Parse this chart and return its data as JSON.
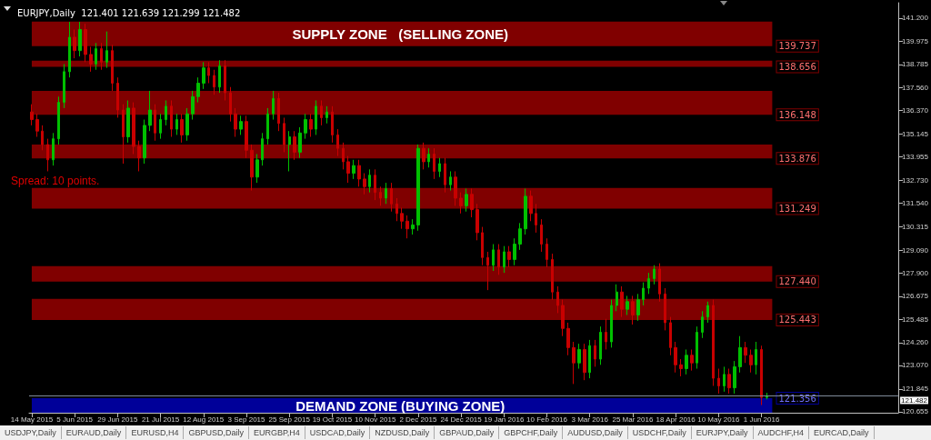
{
  "chart_data": {
    "type": "candlestick",
    "title": "EURJPY,Daily  121.401 121.639 121.299 121.482",
    "annotations": [
      "Spread: 10 points.",
      "SUPPLY ZONE   (SELLING ZONE)",
      "DEMAND ZONE (BUYING ZONE)",
      "USDJPY,Daily",
      "EURAUD,Daily",
      "EURUSD,H4",
      "GBPUSD,Daily",
      "EURGBP,H4",
      "USDCAD,Daily",
      "NZDUSD,Daily",
      "GBPAUD,Daily",
      "GBPCHF,Daily",
      "AUDUSD,Daily",
      "USDCHF,Daily",
      "EURJPY,Daily",
      "AUDCHF,H4",
      "EURCAD,Daily"
    ],
    "categories": [
      "14 May 2015",
      null,
      null,
      null,
      null,
      null,
      null,
      null,
      "5 Jun 2015",
      null,
      null,
      null,
      null,
      null,
      null,
      null,
      "29 Jun 2015",
      null,
      null,
      null,
      null,
      null,
      null,
      null,
      "21 Jul 2015",
      null,
      null,
      null,
      null,
      null,
      null,
      null,
      "12 Aug 2015",
      null,
      null,
      null,
      null,
      null,
      null,
      null,
      "3 Sep 2015",
      null,
      null,
      null,
      null,
      null,
      null,
      null,
      "25 Sep 2015",
      null,
      null,
      null,
      null,
      null,
      null,
      null,
      "19 Oct 2015",
      null,
      null,
      null,
      null,
      null,
      null,
      null,
      "10 Nov 2015",
      null,
      null,
      null,
      null,
      null,
      null,
      null,
      "2 Dec 2015",
      null,
      null,
      null,
      null,
      null,
      null,
      null,
      "24 Dec 2015",
      null,
      null,
      null,
      null,
      null,
      null,
      null,
      "19 Jan 2016",
      null,
      null,
      null,
      null,
      null,
      null,
      null,
      "10 Feb 2016",
      null,
      null,
      null,
      null,
      null,
      null,
      null,
      "3 Mar 2016",
      null,
      null,
      null,
      null,
      null,
      null,
      null,
      "25 Mar 2016",
      null,
      null,
      null,
      null,
      null,
      null,
      null,
      "18 Apr 2016",
      null,
      null,
      null,
      null,
      null,
      null,
      null,
      "10 May 2016",
      null,
      null,
      null,
      null,
      null,
      null,
      null,
      "1 Jun 2016",
      null,
      null,
      null,
      null,
      null,
      null,
      null,
      null,
      null,
      null,
      null,
      null,
      null,
      null,
      null,
      null,
      null,
      null,
      null,
      null,
      null,
      null,
      null,
      null,
      null
    ],
    "ohlc": [
      [
        136.3,
        136.7,
        135.6,
        135.9
      ],
      [
        135.9,
        136.2,
        135.0,
        135.3
      ],
      [
        135.3,
        135.6,
        134.3,
        134.6
      ],
      [
        134.6,
        134.9,
        133.2,
        133.8
      ],
      [
        133.8,
        135.2,
        133.5,
        134.9
      ],
      [
        134.9,
        137.1,
        134.6,
        136.8
      ],
      [
        136.8,
        138.8,
        136.5,
        138.4
      ],
      [
        138.4,
        141.0,
        138.1,
        140.2
      ],
      [
        140.2,
        140.6,
        139.1,
        139.5
      ],
      [
        139.5,
        141.0,
        139.2,
        140.6
      ],
      [
        140.6,
        140.9,
        138.9,
        139.3
      ],
      [
        139.3,
        139.7,
        138.4,
        138.8
      ],
      [
        138.8,
        139.9,
        138.5,
        139.6
      ],
      [
        139.6,
        139.9,
        138.5,
        138.9
      ],
      [
        138.9,
        140.5,
        138.6,
        139.5
      ],
      [
        139.5,
        139.8,
        137.4,
        137.8
      ],
      [
        137.8,
        138.1,
        136.0,
        136.4
      ],
      [
        136.4,
        136.7,
        133.6,
        135.0
      ],
      [
        135.0,
        136.9,
        134.7,
        136.5
      ],
      [
        136.5,
        136.8,
        134.1,
        134.5
      ],
      [
        134.5,
        134.8,
        133.2,
        133.9
      ],
      [
        133.9,
        135.9,
        133.6,
        135.6
      ],
      [
        135.6,
        137.4,
        135.3,
        136.4
      ],
      [
        136.4,
        136.7,
        134.8,
        135.2
      ],
      [
        135.2,
        136.2,
        134.9,
        135.9
      ],
      [
        135.9,
        136.9,
        135.6,
        136.6
      ],
      [
        136.6,
        136.9,
        135.0,
        135.4
      ],
      [
        135.4,
        136.2,
        135.1,
        135.9
      ],
      [
        135.9,
        136.2,
        134.7,
        135.1
      ],
      [
        135.1,
        136.5,
        134.8,
        136.2
      ],
      [
        136.2,
        137.4,
        135.9,
        137.1
      ],
      [
        137.1,
        138.1,
        136.8,
        137.8
      ],
      [
        137.8,
        138.9,
        137.5,
        138.6
      ],
      [
        138.6,
        138.9,
        137.8,
        138.2
      ],
      [
        138.2,
        138.5,
        137.2,
        137.6
      ],
      [
        137.6,
        139.0,
        137.3,
        138.7
      ],
      [
        138.7,
        139.0,
        136.9,
        137.3
      ],
      [
        137.3,
        137.6,
        135.8,
        136.2
      ],
      [
        136.2,
        136.5,
        135.0,
        135.4
      ],
      [
        135.4,
        136.1,
        135.1,
        135.8
      ],
      [
        135.8,
        136.1,
        133.9,
        134.3
      ],
      [
        134.3,
        134.6,
        132.2,
        132.9
      ],
      [
        132.9,
        134.1,
        132.6,
        133.8
      ],
      [
        133.8,
        135.2,
        133.5,
        134.9
      ],
      [
        134.9,
        136.5,
        134.6,
        136.2
      ],
      [
        136.2,
        137.4,
        135.9,
        137.0
      ],
      [
        137.0,
        137.3,
        135.3,
        135.7
      ],
      [
        135.7,
        136.0,
        134.2,
        134.6
      ],
      [
        134.6,
        135.3,
        133.2,
        135.0
      ],
      [
        135.0,
        135.3,
        133.8,
        134.2
      ],
      [
        134.2,
        135.5,
        133.9,
        135.2
      ],
      [
        135.2,
        136.2,
        134.9,
        135.9
      ],
      [
        135.9,
        136.2,
        135.0,
        135.4
      ],
      [
        135.4,
        136.9,
        135.1,
        136.6
      ],
      [
        136.6,
        136.9,
        135.6,
        136.0
      ],
      [
        136.0,
        136.6,
        135.7,
        136.3
      ],
      [
        136.3,
        136.6,
        134.7,
        135.1
      ],
      [
        135.1,
        135.4,
        134.0,
        134.4
      ],
      [
        134.4,
        134.7,
        133.3,
        133.7
      ],
      [
        133.7,
        134.0,
        132.6,
        133.1
      ],
      [
        133.1,
        133.8,
        132.8,
        133.5
      ],
      [
        133.5,
        133.8,
        132.4,
        132.8
      ],
      [
        132.8,
        133.1,
        132.0,
        132.4
      ],
      [
        132.4,
        133.3,
        132.1,
        133.0
      ],
      [
        133.0,
        133.3,
        131.7,
        132.1
      ],
      [
        132.1,
        132.4,
        131.4,
        131.8
      ],
      [
        131.8,
        132.6,
        131.5,
        132.3
      ],
      [
        132.3,
        132.6,
        131.1,
        131.5
      ],
      [
        131.5,
        131.8,
        130.6,
        131.0
      ],
      [
        131.0,
        131.3,
        130.2,
        130.6
      ],
      [
        130.6,
        130.9,
        129.7,
        130.2
      ],
      [
        130.2,
        130.7,
        129.9,
        130.4
      ],
      [
        130.4,
        134.6,
        130.1,
        134.4
      ],
      [
        134.4,
        134.7,
        133.3,
        133.7
      ],
      [
        133.7,
        134.4,
        133.4,
        134.1
      ],
      [
        134.1,
        134.4,
        132.8,
        133.2
      ],
      [
        133.2,
        133.9,
        132.9,
        133.6
      ],
      [
        133.6,
        133.9,
        132.1,
        132.5
      ],
      [
        132.5,
        133.2,
        132.2,
        132.9
      ],
      [
        132.9,
        133.2,
        131.4,
        131.8
      ],
      [
        131.8,
        132.1,
        131.0,
        131.4
      ],
      [
        131.4,
        132.3,
        131.1,
        132.0
      ],
      [
        132.0,
        132.3,
        130.8,
        131.2
      ],
      [
        131.2,
        131.5,
        129.6,
        130.0
      ],
      [
        130.0,
        130.3,
        128.3,
        128.7
      ],
      [
        128.7,
        129.0,
        127.0,
        128.3
      ],
      [
        128.3,
        129.4,
        128.0,
        129.1
      ],
      [
        129.1,
        129.4,
        127.8,
        128.2
      ],
      [
        128.2,
        129.3,
        127.9,
        129.0
      ],
      [
        129.0,
        129.3,
        128.2,
        128.6
      ],
      [
        128.6,
        129.7,
        128.3,
        129.4
      ],
      [
        129.4,
        130.5,
        129.1,
        130.2
      ],
      [
        130.2,
        132.3,
        129.9,
        131.9
      ],
      [
        131.9,
        132.2,
        130.6,
        131.0
      ],
      [
        131.0,
        131.5,
        130.0,
        130.4
      ],
      [
        130.4,
        130.7,
        129.0,
        129.4
      ],
      [
        129.4,
        129.7,
        128.2,
        128.6
      ],
      [
        128.6,
        128.9,
        126.5,
        126.9
      ],
      [
        126.9,
        127.2,
        125.8,
        126.2
      ],
      [
        126.2,
        126.5,
        124.6,
        125.0
      ],
      [
        125.0,
        125.3,
        123.6,
        124.0
      ],
      [
        124.0,
        124.3,
        122.1,
        123.2
      ],
      [
        123.2,
        124.2,
        122.9,
        123.9
      ],
      [
        123.9,
        124.2,
        122.3,
        122.7
      ],
      [
        122.7,
        124.4,
        122.4,
        124.1
      ],
      [
        124.1,
        124.4,
        123.0,
        123.4
      ],
      [
        123.4,
        125.1,
        123.1,
        124.8
      ],
      [
        124.8,
        125.5,
        123.9,
        124.3
      ],
      [
        124.3,
        126.5,
        124.0,
        126.2
      ],
      [
        126.2,
        127.3,
        125.9,
        126.9
      ],
      [
        126.9,
        127.2,
        125.6,
        126.0
      ],
      [
        126.0,
        126.7,
        125.7,
        126.4
      ],
      [
        126.4,
        126.7,
        125.2,
        125.7
      ],
      [
        125.7,
        126.8,
        125.4,
        126.5
      ],
      [
        126.5,
        127.4,
        126.2,
        127.1
      ],
      [
        127.1,
        127.9,
        126.8,
        127.6
      ],
      [
        127.6,
        128.3,
        127.3,
        128.1
      ],
      [
        128.1,
        128.4,
        126.4,
        126.8
      ],
      [
        126.8,
        127.1,
        124.9,
        125.3
      ],
      [
        125.3,
        125.6,
        123.6,
        124.0
      ],
      [
        124.0,
        124.3,
        122.7,
        123.1
      ],
      [
        123.1,
        123.4,
        122.5,
        122.9
      ],
      [
        122.9,
        123.9,
        122.6,
        123.6
      ],
      [
        123.6,
        123.9,
        122.8,
        123.2
      ],
      [
        123.2,
        125.1,
        122.9,
        124.8
      ],
      [
        124.8,
        125.9,
        124.5,
        125.6
      ],
      [
        125.6,
        126.4,
        125.3,
        126.2
      ],
      [
        126.2,
        126.5,
        122.0,
        122.4
      ],
      [
        122.4,
        122.9,
        121.6,
        122.0
      ],
      [
        122.0,
        123.0,
        121.7,
        122.6
      ],
      [
        122.6,
        122.9,
        121.6,
        121.9
      ],
      [
        121.9,
        123.3,
        121.6,
        123.0
      ],
      [
        123.0,
        124.6,
        122.7,
        124.0
      ],
      [
        124.0,
        124.3,
        123.2,
        123.6
      ],
      [
        123.6,
        123.9,
        122.7,
        123.1
      ],
      [
        123.1,
        124.3,
        122.6,
        123.9
      ],
      [
        123.9,
        124.1,
        121.0,
        121.4
      ],
      [
        121.401,
        121.639,
        121.299,
        121.482
      ],
      null,
      null,
      null,
      null,
      null,
      null,
      null,
      null,
      null,
      null,
      null,
      null,
      null,
      null,
      null,
      null,
      null,
      null,
      null,
      null,
      null,
      null,
      null,
      null
    ],
    "ylim": [
      120.6,
      142.0
    ],
    "yticks": [
      {
        "value": 141.2,
        "label": "141.200"
      },
      {
        "value": 139.975,
        "label": "139.975"
      },
      {
        "value": 138.785,
        "label": "138.785"
      },
      {
        "value": 137.56,
        "label": "137.560"
      },
      {
        "value": 136.37,
        "label": "136.370"
      },
      {
        "value": 135.145,
        "label": "135.145"
      },
      {
        "value": 133.955,
        "label": "133.955"
      },
      {
        "value": 132.73,
        "label": "132.730"
      },
      {
        "value": 131.54,
        "label": "131.540"
      },
      {
        "value": 130.315,
        "label": "130.315"
      },
      {
        "value": 129.09,
        "label": "129.090"
      },
      {
        "value": 127.9,
        "label": "127.900"
      },
      {
        "value": 126.675,
        "label": "126.675"
      },
      {
        "value": 125.485,
        "label": "125.485"
      },
      {
        "value": 124.26,
        "label": "124.260"
      },
      {
        "value": 123.07,
        "label": "123.070"
      },
      {
        "value": 121.845,
        "label": "121.845"
      },
      {
        "value": 120.655,
        "label": "120.655"
      }
    ],
    "bands": [
      {
        "axis": "y",
        "from": 139.737,
        "to": 141.01,
        "label": "139.737",
        "color": "#800000"
      },
      {
        "axis": "y",
        "from": 138.656,
        "to": 138.97,
        "label": "138.656",
        "color": "#800000"
      },
      {
        "axis": "y",
        "from": 136.148,
        "to": 137.4,
        "label": "136.148",
        "color": "#800000"
      },
      {
        "axis": "y",
        "from": 133.876,
        "to": 134.6,
        "label": "133.876",
        "color": "#800000"
      },
      {
        "axis": "y",
        "from": 131.249,
        "to": 132.33,
        "label": "131.249",
        "color": "#800000"
      },
      {
        "axis": "y",
        "from": 127.44,
        "to": 128.25,
        "label": "127.440",
        "color": "#800000"
      },
      {
        "axis": "y",
        "from": 125.443,
        "to": 126.54,
        "label": "125.443",
        "color": "#800000"
      },
      {
        "axis": "y",
        "from": 121.356,
        "to": 120.6,
        "label": "121.356",
        "color": "#000099"
      }
    ],
    "ref_lines": [
      {
        "axis": "y",
        "value": 121.482,
        "label": "121.482",
        "color": "#7f8a99"
      }
    ]
  }
}
